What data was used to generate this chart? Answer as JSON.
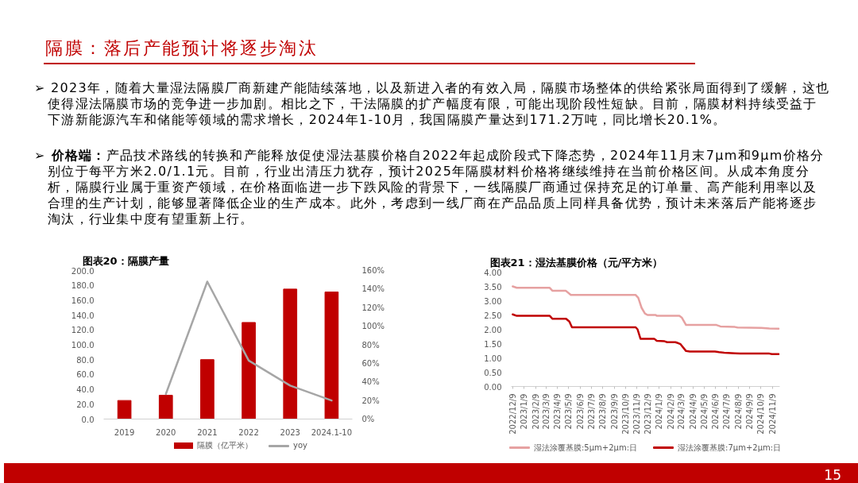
{
  "chart_data": [
    {
      "type": "other",
      "title": "隔膜：落后产能预计将逐步淘汰",
      "annotations": [
        "➢ 2023年，随着大量湿法隔膜厂商新建产能陆续落地，以及新进入者的有效入局，隔膜市场整体的供给紧张局面得到了缓解，这也使得湿法隔膜市场的竞争进一步加剧。相比之下，干法隔膜的扩产幅度有限，可能出现阶段性短缺。目前，隔膜材料持续受益于下游新能源汽车和储能等领域的需求增长，2024年1-10月，我国隔膜产量达到171.2万吨，同比增长20.1%。",
        "➢ 价格端：产品技术路线的转换和产能释放促使湿法基膜价格自2022年起成阶段式下降态势，2024年11月末7μm和9μm价格分别位于每平方米2.0/1.1元。目前，行业出清压力犹存，预计2025年隔膜材料价格将继续维持在当前价格区间。从成本角度分析，隔膜行业属于重资产领域，在价格面临进一步下跌风险的背景下，一线隔膜厂商通过保持充足的订单量、高产能利用率以及合理的生产计划，能够显著降低企业的生产成本。此外，考虑到一线厂商在产品品质上同样具备优势，预计未来落后产能将逐步淘汰，行业集中度有望重新上行。",
        "15"
      ]
    },
    {
      "type": "bar",
      "title": "图表20：隔膜产量",
      "categories": [
        "2019",
        "2020",
        "2021",
        "2022",
        "2023",
        "2024.1-10"
      ],
      "series": [
        {
          "name": "隔膜（亿平米）",
          "color": "#c00000",
          "values": [
            25,
            32,
            80,
            130,
            175,
            171
          ]
        },
        {
          "name": "yoy",
          "type": "line",
          "axis": "y2",
          "color": "#a6a6a6",
          "values": [
            null,
            27,
            148,
            63,
            36,
            20
          ]
        }
      ],
      "ylim": [
        0,
        200
      ],
      "yticks": [
        {
          "value": 0,
          "label": "0.0"
        },
        {
          "value": 20,
          "label": "20.0"
        },
        {
          "value": 40,
          "label": "40.0"
        },
        {
          "value": 60,
          "label": "60.0"
        },
        {
          "value": 80,
          "label": "80.0"
        },
        {
          "value": 100,
          "label": "100.0"
        },
        {
          "value": 120,
          "label": "120.0"
        },
        {
          "value": 140,
          "label": "140.0"
        },
        {
          "value": 160,
          "label": "160.0"
        },
        {
          "value": 180,
          "label": "180.0"
        },
        {
          "value": 200,
          "label": "200.0"
        }
      ],
      "y2lim": [
        0,
        160
      ],
      "y2ticks": [
        {
          "value": 0,
          "label": "0%"
        },
        {
          "value": 20,
          "label": "20%"
        },
        {
          "value": 40,
          "label": "40%"
        },
        {
          "value": 60,
          "label": "60%"
        },
        {
          "value": 80,
          "label": "80%"
        },
        {
          "value": 100,
          "label": "100%"
        },
        {
          "value": 120,
          "label": "120%"
        },
        {
          "value": 140,
          "label": "140%"
        },
        {
          "value": 160,
          "label": "160%"
        }
      ],
      "legend": "bottom",
      "grid": false
    },
    {
      "type": "line",
      "title": "图表21：湿法基膜价格（元/平方米）",
      "series": [
        {
          "name": "湿法涂覆基膜:5μm+2μm:日",
          "color": "#e6a1a1",
          "x": [
            "2022-12-09",
            "2022-12-20",
            "2023-03-19",
            "2023-03-26",
            "2023-05-01",
            "2023-05-15",
            "2023-11-06",
            "2023-11-13",
            "2023-11-22",
            "2023-12-01",
            "2023-12-08",
            "2023-12-30",
            "2024-01-02",
            "2024-03-03",
            "2024-03-10",
            "2024-03-21",
            "2024-06-11",
            "2024-06-22",
            "2024-07-31",
            "2024-08-07",
            "2024-10-10",
            "2024-11-01",
            "2024-11-26"
          ],
          "values": [
            3.5,
            3.45,
            3.45,
            3.35,
            3.35,
            3.2,
            3.2,
            3.1,
            2.75,
            2.55,
            2.5,
            2.5,
            2.47,
            2.47,
            2.4,
            2.15,
            2.15,
            2.1,
            2.08,
            2.06,
            2.05,
            2.03,
            2.02
          ]
        },
        {
          "name": "湿法涂覆基膜:7μm+2μm:日",
          "color": "#c00000",
          "x": [
            "2022-12-09",
            "2022-12-20",
            "2023-03-19",
            "2023-03-26",
            "2023-05-02",
            "2023-05-11",
            "2023-05-18",
            "2023-11-06",
            "2023-11-11",
            "2023-11-19",
            "2023-12-26",
            "2024-01-02",
            "2024-01-23",
            "2024-01-30",
            "2024-02-21",
            "2024-02-28",
            "2024-03-06",
            "2024-03-21",
            "2024-03-31",
            "2024-06-07",
            "2024-06-18",
            "2024-07-02",
            "2024-07-31",
            "2024-08-14",
            "2024-11-01",
            "2024-11-08",
            "2024-11-26"
          ],
          "values": [
            2.52,
            2.47,
            2.47,
            2.37,
            2.37,
            2.27,
            2.07,
            2.07,
            2.0,
            1.67,
            1.67,
            1.6,
            1.58,
            1.55,
            1.55,
            1.52,
            1.48,
            1.24,
            1.22,
            1.22,
            1.2,
            1.18,
            1.16,
            1.15,
            1.15,
            1.13,
            1.13
          ]
        }
      ],
      "xlim": [
        "2022-12-05",
        "2024-11-29"
      ],
      "xticks": [
        {
          "value": "2022-12-09",
          "label": "2022/12/9"
        },
        {
          "value": "2023-01-09",
          "label": "2023/1/9"
        },
        {
          "value": "2023-02-09",
          "label": "2023/2/9"
        },
        {
          "value": "2023-03-09",
          "label": "2023/3/9"
        },
        {
          "value": "2023-04-09",
          "label": "2023/4/9"
        },
        {
          "value": "2023-05-09",
          "label": "2023/5/9"
        },
        {
          "value": "2023-06-09",
          "label": "2023/6/9"
        },
        {
          "value": "2023-07-09",
          "label": "2023/7/9"
        },
        {
          "value": "2023-08-09",
          "label": "2023/8/9"
        },
        {
          "value": "2023-09-09",
          "label": "2023/9/9"
        },
        {
          "value": "2023-10-09",
          "label": "2023/10/9"
        },
        {
          "value": "2023-11-09",
          "label": "2023/11/9"
        },
        {
          "value": "2023-12-09",
          "label": "2023/12/9"
        },
        {
          "value": "2024-01-09",
          "label": "2024/1/9"
        },
        {
          "value": "2024-02-09",
          "label": "2024/2/9"
        },
        {
          "value": "2024-03-09",
          "label": "2024/3/9"
        },
        {
          "value": "2024-04-09",
          "label": "2024/4/9"
        },
        {
          "value": "2024-05-09",
          "label": "2024/5/9"
        },
        {
          "value": "2024-06-09",
          "label": "2024/6/9"
        },
        {
          "value": "2024-07-09",
          "label": "2024/7/9"
        },
        {
          "value": "2024-08-09",
          "label": "2024/8/9"
        },
        {
          "value": "2024-09-09",
          "label": "2024/9/9"
        },
        {
          "value": "2024-10-09",
          "label": "2024/10/9"
        },
        {
          "value": "2024-11-09",
          "label": "2024/11/9"
        }
      ],
      "ylim": [
        0,
        4
      ],
      "yticks": [
        {
          "value": 0,
          "label": "0.00"
        },
        {
          "value": 0.5,
          "label": "0.50"
        },
        {
          "value": 1,
          "label": "1.00"
        },
        {
          "value": 1.5,
          "label": "1.50"
        },
        {
          "value": 2,
          "label": "2.00"
        },
        {
          "value": 2.5,
          "label": "2.50"
        },
        {
          "value": 3,
          "label": "3.00"
        },
        {
          "value": 3.5,
          "label": "3.50"
        },
        {
          "value": 4,
          "label": "4.00"
        }
      ],
      "legend": "bottom",
      "grid": false
    }
  ]
}
